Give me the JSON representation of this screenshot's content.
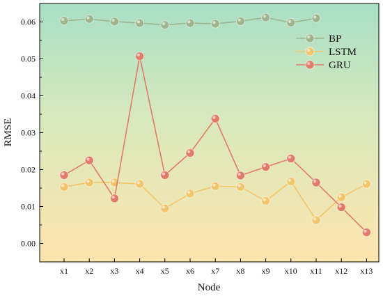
{
  "chart_data": {
    "type": "line",
    "xlabel": "Node",
    "ylabel": "RMSE",
    "categories": [
      "x1",
      "x2",
      "x3",
      "x4",
      "x5",
      "x6",
      "x7",
      "x8",
      "x9",
      "x10",
      "x11",
      "x12",
      "x13"
    ],
    "ylim": [
      -0.005,
      0.065
    ],
    "yticks": [
      "0.00",
      "0.01",
      "0.02",
      "0.03",
      "0.04",
      "0.05",
      "0.06"
    ],
    "legend_position": "top-right",
    "grid": false,
    "background_gradient": [
      "#a8dfc6",
      "#fde4ae"
    ],
    "series": [
      {
        "name": "BP",
        "color": "#9cb58d",
        "values": [
          0.0603,
          0.0608,
          0.0601,
          0.0597,
          0.0592,
          0.0597,
          0.0595,
          0.0602,
          0.0612,
          0.0598,
          0.061,
          null,
          null
        ]
      },
      {
        "name": "LSTM",
        "color": "#f2c56b",
        "values": [
          0.0153,
          0.0165,
          0.0165,
          0.0161,
          0.0095,
          0.0135,
          0.0155,
          0.0153,
          0.0115,
          0.0168,
          0.0063,
          0.0125,
          0.0161
        ]
      },
      {
        "name": "GRU",
        "color": "#e07b68",
        "values": [
          0.0185,
          0.0225,
          0.0122,
          0.0507,
          0.0185,
          0.0245,
          0.0338,
          0.0184,
          0.0207,
          0.023,
          0.0165,
          0.0098,
          0.003
        ]
      }
    ]
  }
}
